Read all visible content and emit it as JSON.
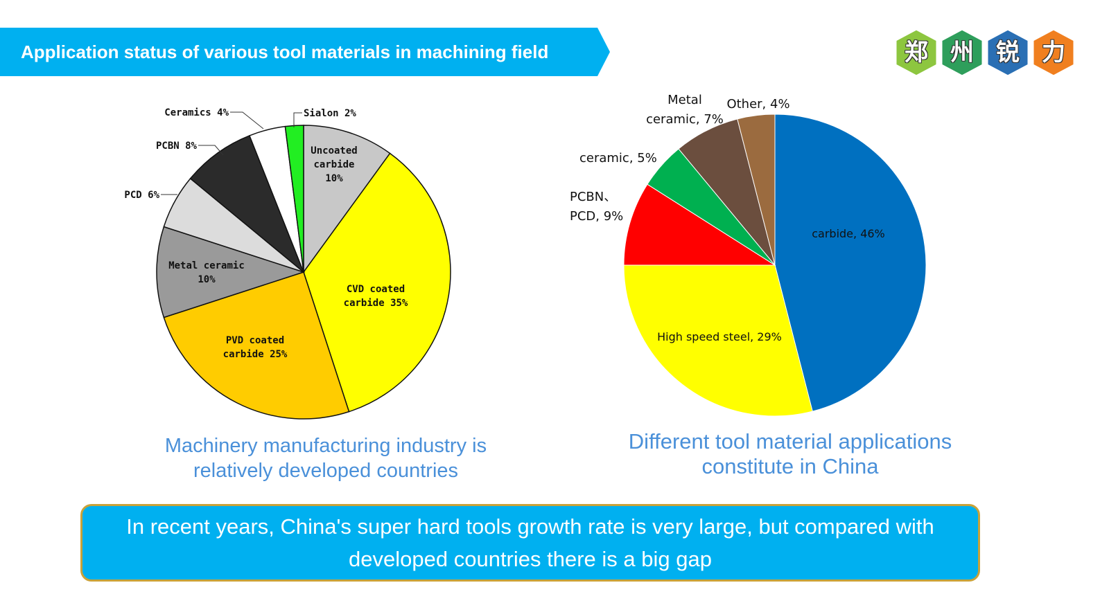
{
  "header": {
    "title": "Application status of various tool materials in machining field",
    "color": "#00b0f0"
  },
  "logo": {
    "chars": [
      {
        "text": "郑",
        "color": "#8dc63f"
      },
      {
        "text": "州",
        "color": "#2e9e5b"
      },
      {
        "text": "锐",
        "color": "#2a6fb4"
      },
      {
        "text": "力",
        "color": "#f07f1f"
      }
    ]
  },
  "chart_data": [
    {
      "type": "pie",
      "title": "",
      "slices": [
        {
          "label": "Uncoated carbide 10%",
          "value": 10,
          "color": "#c8c8c8"
        },
        {
          "label": "CVD coated carbide 35%",
          "value": 35,
          "color": "#ffff00"
        },
        {
          "label": "PVD coated carbide 25%",
          "value": 25,
          "color": "#ffcc00"
        },
        {
          "label": "Metal ceramic 10%",
          "value": 10,
          "color": "#9a9a9a"
        },
        {
          "label": "PCD 6%",
          "value": 6,
          "color": "#dcdcdc"
        },
        {
          "label": "PCBN 8%",
          "value": 8,
          "color": "#2b2b2b"
        },
        {
          "label": "Ceramics 4%",
          "value": 4,
          "color": "#ffffff"
        },
        {
          "label": "Sialon 2%",
          "value": 2,
          "color": "#22ee22"
        }
      ],
      "caption": "Machinery manufacturing industry is relatively developed countries"
    },
    {
      "type": "pie",
      "title": "",
      "slices": [
        {
          "label": "carbide, 46%",
          "value": 46,
          "color": "#0070c0"
        },
        {
          "label": "High speed steel, 29%",
          "value": 29,
          "color": "#ffff00"
        },
        {
          "label": "PCBN、PCD, 9%",
          "value": 9,
          "color": "#ff0000"
        },
        {
          "label": "ceramic, 5%",
          "value": 5,
          "color": "#00b050"
        },
        {
          "label": "Metal ceramic, 7%",
          "value": 7,
          "color": "#6b4e3e"
        },
        {
          "label": "Other, 4%",
          "value": 4,
          "color": "#9b6b3f"
        }
      ],
      "caption": "Different tool material applications constitute in China"
    }
  ],
  "footer": {
    "text": "In recent years, China's super hard tools growth rate is very large, but compared with developed countries there is a big gap"
  }
}
